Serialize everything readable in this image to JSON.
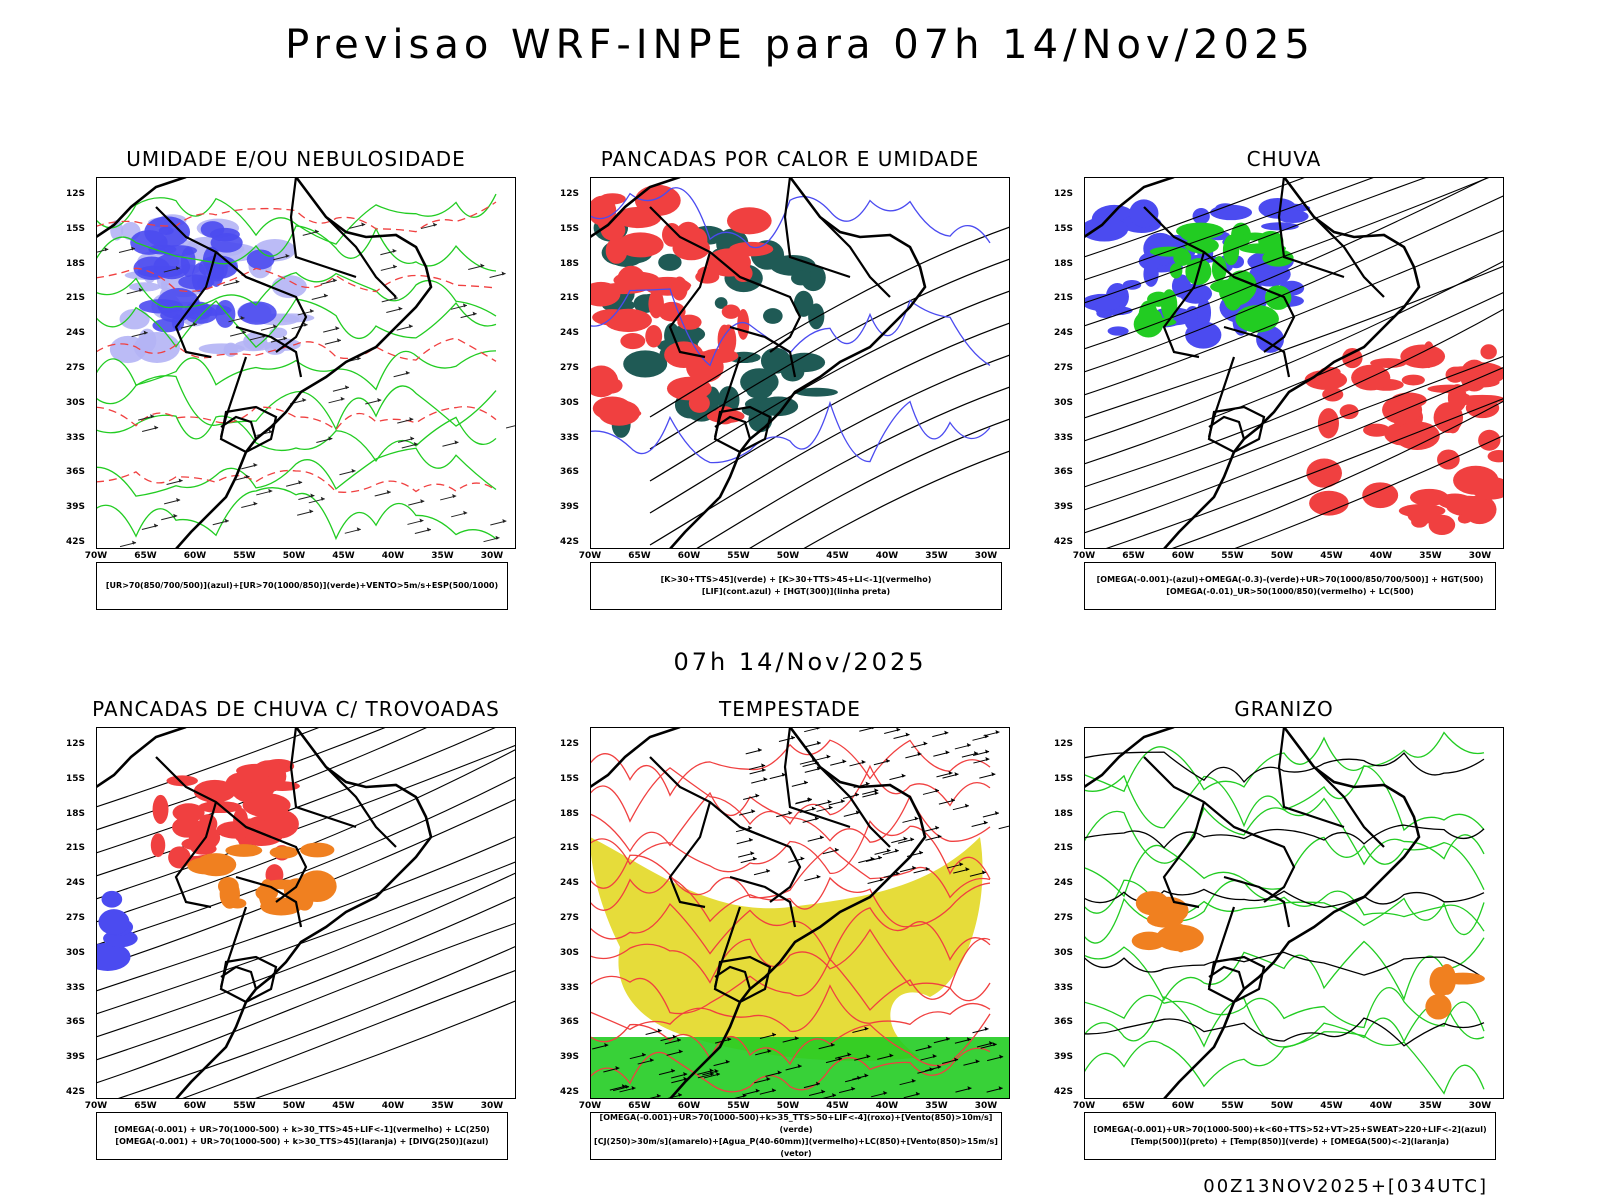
{
  "main_title": "Previsao WRF-INPE  para 07h 14/Nov/2025",
  "mid_title": "07h 14/Nov/2025",
  "footer": "00Z13NOV2025+[034UTC]",
  "lat_labels": [
    "12S",
    "15S",
    "18S",
    "21S",
    "24S",
    "27S",
    "30S",
    "33S",
    "36S",
    "39S",
    "42S"
  ],
  "lon_labels": [
    "70W",
    "65W",
    "60W",
    "55W",
    "50W",
    "45W",
    "40W",
    "35W",
    "30W"
  ],
  "panels": [
    {
      "title": "UMIDADE E/OU NEBULOSIDADE",
      "legend": [
        "[UR>70(850/700/500)](azul)+[UR>70(1000/850)](verde)+VENTO>5m/s+ESP(500/1000)"
      ]
    },
    {
      "title": "PANCADAS POR CALOR E UMIDADE",
      "legend": [
        "[K>30+TTS>45](verde) + [K>30+TTS>45+LI<-1](vermelho)",
        "[LIF](cont.azul) + [HGT(300)](linha preta)"
      ]
    },
    {
      "title": "CHUVA",
      "legend": [
        "[OMEGA(-0.001)-(azul)+OMEGA(-0.3)-(verde)+UR>70(1000/850/700/500)] + HGT(500)",
        "[OMEGA(-0.01)_UR>50(1000/850)(vermelho) + LC(500)"
      ]
    },
    {
      "title": "PANCADAS DE CHUVA C/ TROVOADAS",
      "legend": [
        "[OMEGA(-0.001) + UR>70(1000-500) + k>30_TTS>45+LIF<-1](vermelho) + LC(250)",
        "[OMEGA(-0.001) + UR>70(1000-500) + k>30_TTS>45](laranja) + [DIVG(250)](azul)"
      ]
    },
    {
      "title": "TEMPESTADE",
      "legend": [
        "[OMEGA(-0.001)+UR>70(1000-500)+k>35_TTS>50+LIF<-4](roxo)+[Vento(850)>10m/s](verde)",
        "[CJ(250)>30m/s](amarelo)+[Agua_P(40-60mm)](vermelho)+LC(850)+[Vento(850)>15m/s](vetor)"
      ]
    },
    {
      "title": "GRANIZO",
      "legend": [
        "[OMEGA(-0.001)+UR>70(1000-500)+k<60+TTS>52+VT>25+SWEAT>220+LIF<-2](azul)",
        "[Temp(500)](preto) + [Temp(850)](verde) + [OMEGA(500)<-2](laranja)"
      ]
    }
  ],
  "colors": {
    "blue": "#4b4bf0",
    "lightblue": "#b4b4f5",
    "green": "#22cc22",
    "red": "#f04040",
    "darkteal": "#1f5a55",
    "orange": "#f08020",
    "yellow": "#e6dc3a"
  }
}
